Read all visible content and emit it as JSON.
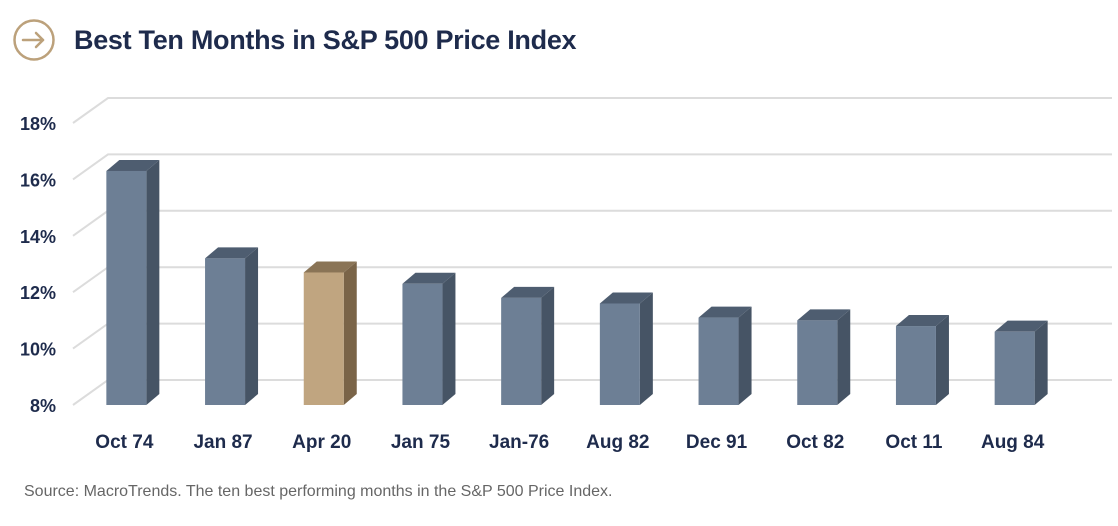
{
  "header": {
    "title": "Best Ten Months in S&P 500 Price Index",
    "icon": "arrow-right-circle-icon"
  },
  "colors": {
    "accent": "#bca17b",
    "bar": "#6d7f95",
    "highlight_bar": "#c0a580",
    "title": "#1e2b4c",
    "grid": "#dcdcdc"
  },
  "chart_data": {
    "type": "bar",
    "title": "Best Ten Months in S&P 500 Price Index",
    "xlabel": "",
    "ylabel": "",
    "categories": [
      "Oct 74",
      "Jan 87",
      "Apr 20",
      "Jan 75",
      "Jan-76",
      "Aug 82",
      "Dec 91",
      "Oct 82",
      "Oct 11",
      "Aug 84"
    ],
    "values": [
      16.3,
      13.2,
      12.7,
      12.3,
      11.8,
      11.6,
      11.1,
      11.0,
      10.8,
      10.6
    ],
    "highlight": "Apr 20",
    "ylim": [
      8,
      18
    ],
    "yticks": [
      8,
      10,
      12,
      14,
      16,
      18
    ],
    "ytick_labels": [
      "8%",
      "10%",
      "12%",
      "14%",
      "16%",
      "18%"
    ],
    "grid": true,
    "legend": "none",
    "style": "3d"
  },
  "footer": {
    "source": "Source: MacroTrends. The ten best performing months in the S&P 500 Price Index."
  }
}
